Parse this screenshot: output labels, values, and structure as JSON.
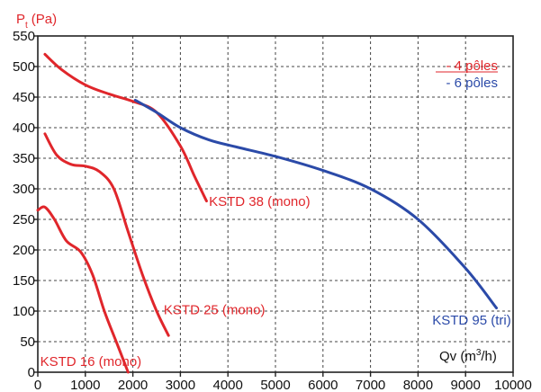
{
  "chart_data": {
    "type": "line",
    "ylabel": {
      "main": "P",
      "sub": "t",
      "unit": "(Pa)"
    },
    "xlabel": {
      "pre": "Qv (m",
      "sup": "3",
      "post": "/h)"
    },
    "xlim": [
      0,
      10000
    ],
    "ylim": [
      0,
      550
    ],
    "x_ticks": [
      0,
      1000,
      2000,
      3000,
      4000,
      5000,
      6000,
      7000,
      8000,
      9000,
      10000
    ],
    "y_ticks": [
      0,
      50,
      100,
      150,
      200,
      250,
      300,
      350,
      400,
      450,
      500,
      550
    ],
    "grid": true,
    "legend_position": "top-right",
    "legend": [
      {
        "label": "- 4 pôles",
        "color": "#e0262b"
      },
      {
        "label": "- 6 pôles",
        "color": "#2b4aa8"
      }
    ],
    "series": [
      {
        "name": "KSTD 16 (mono)",
        "color": "#e0262b",
        "x": [
          0,
          150,
          350,
          600,
          900,
          1150,
          1400,
          1650,
          1900
        ],
        "y": [
          265,
          270,
          250,
          215,
          197,
          160,
          100,
          50,
          0
        ]
      },
      {
        "name": "KSTD 25 (mono)",
        "color": "#e0262b",
        "x": [
          150,
          400,
          700,
          1000,
          1300,
          1600,
          1900,
          2200,
          2500,
          2750
        ],
        "y": [
          390,
          355,
          340,
          337,
          328,
          300,
          230,
          160,
          100,
          60
        ]
      },
      {
        "name": "KSTD 38 (mono)",
        "color": "#e0262b",
        "x": [
          150,
          500,
          1000,
          1500,
          2000,
          2500,
          3000,
          3300,
          3550
        ],
        "y": [
          520,
          495,
          470,
          455,
          443,
          425,
          370,
          320,
          280
        ]
      },
      {
        "name": "KSTD 95 (tri)",
        "color": "#2b4aa8",
        "x": [
          2050,
          2500,
          3000,
          3600,
          4200,
          5000,
          6000,
          7000,
          8000,
          9000,
          9650
        ],
        "y": [
          445,
          425,
          400,
          380,
          368,
          353,
          330,
          300,
          250,
          170,
          105
        ]
      }
    ],
    "series_labels": [
      {
        "text": "KSTD 16 (mono)",
        "at": [
          50,
          10
        ]
      },
      {
        "text": "KSTD 25 (mono)",
        "at": [
          2650,
          95
        ]
      },
      {
        "text": "KSTD 38 (mono)",
        "at": [
          3600,
          272
        ]
      },
      {
        "text": "KSTD 95 (tri)",
        "at": [
          8300,
          78
        ]
      }
    ]
  }
}
